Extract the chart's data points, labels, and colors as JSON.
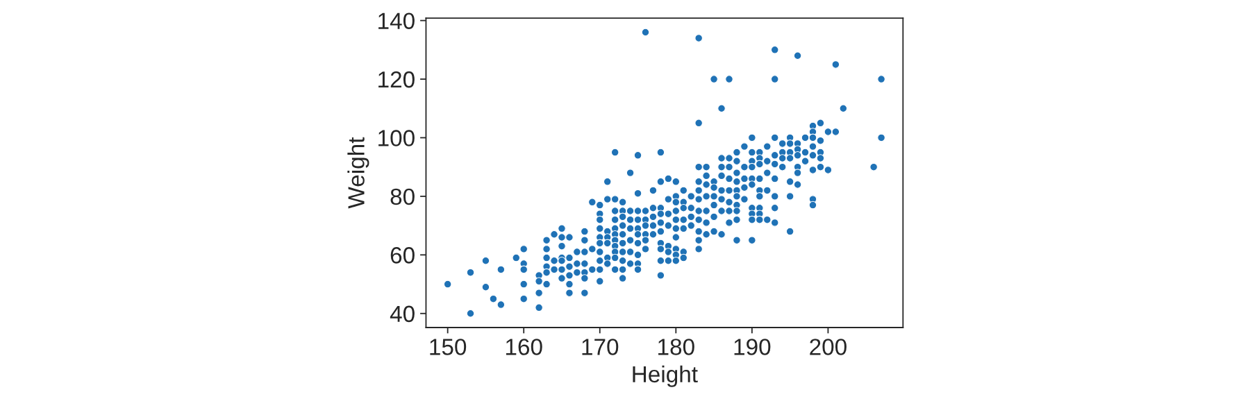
{
  "chart_data": {
    "type": "scatter",
    "xlabel": "Height",
    "ylabel": "Weight",
    "color": "#1f72b6",
    "marker": "circle",
    "xlim": [
      147.15,
      209.85
    ],
    "ylim": [
      35.2,
      140.8
    ],
    "xticks": [
      150,
      160,
      170,
      180,
      190,
      200
    ],
    "yticks": [
      40,
      60,
      80,
      100,
      120,
      140
    ],
    "x": [
      150,
      153,
      153,
      155,
      155,
      156,
      157,
      157,
      159,
      160,
      160,
      160,
      160,
      160,
      162,
      162,
      162,
      162,
      163,
      163,
      163,
      163,
      163,
      163,
      164,
      164,
      164,
      165,
      165,
      165,
      165,
      165,
      165,
      165,
      166,
      166,
      166,
      166,
      166,
      166,
      167,
      167,
      167,
      168,
      168,
      168,
      168,
      168,
      168,
      168,
      169,
      169,
      169,
      170,
      170,
      170,
      170,
      170,
      170,
      170,
      170,
      170,
      170,
      171,
      171,
      171,
      171,
      171,
      171,
      171,
      172,
      172,
      172,
      172,
      172,
      172,
      172,
      172,
      172,
      172,
      172,
      173,
      173,
      173,
      173,
      173,
      173,
      173,
      173,
      173,
      173,
      174,
      174,
      174,
      174,
      174,
      174,
      174,
      175,
      175,
      175,
      175,
      175,
      175,
      175,
      175,
      175,
      175,
      176,
      176,
      176,
      176,
      176,
      176,
      176,
      177,
      177,
      177,
      177,
      177,
      178,
      178,
      178,
      178,
      178,
      178,
      178,
      178,
      178,
      178,
      179,
      179,
      179,
      179,
      179,
      179,
      179,
      180,
      180,
      180,
      180,
      180,
      180,
      180,
      180,
      180,
      180,
      181,
      181,
      181,
      181,
      181,
      181,
      181,
      182,
      182,
      182,
      182,
      183,
      183,
      183,
      183,
      183,
      183,
      183,
      183,
      183,
      183,
      183,
      184,
      184,
      184,
      184,
      184,
      184,
      184,
      185,
      185,
      185,
      185,
      185,
      185,
      185,
      186,
      186,
      186,
      186,
      186,
      186,
      186,
      186,
      187,
      187,
      187,
      187,
      187,
      187,
      187,
      187,
      188,
      188,
      188,
      188,
      188,
      188,
      188,
      188,
      188,
      188,
      189,
      189,
      189,
      189,
      189,
      190,
      190,
      190,
      190,
      190,
      190,
      190,
      190,
      190,
      190,
      191,
      191,
      191,
      191,
      191,
      191,
      191,
      191,
      191,
      192,
      192,
      192,
      192,
      192,
      193,
      193,
      193,
      193,
      193,
      193,
      193,
      193,
      193,
      194,
      194,
      194,
      194,
      195,
      195,
      195,
      195,
      195,
      195,
      195,
      196,
      196,
      196,
      196,
      196,
      196,
      196,
      197,
      197,
      197,
      198,
      198,
      198,
      198,
      198,
      198,
      198,
      198,
      199,
      199,
      199,
      199,
      199,
      200,
      200,
      201,
      201,
      202,
      206,
      207,
      207
    ],
    "values": [
      50,
      54,
      40,
      58,
      49,
      45,
      55,
      43,
      59,
      62,
      57,
      55,
      50,
      45,
      53,
      51,
      47,
      42,
      65,
      62,
      59,
      56,
      54,
      50,
      67,
      58,
      55,
      69,
      66,
      63,
      59,
      58,
      55,
      52,
      66,
      59,
      56,
      53,
      50,
      47,
      61,
      57,
      54,
      68,
      65,
      61,
      57,
      54,
      52,
      47,
      78,
      62,
      55,
      77,
      74,
      72,
      69,
      66,
      64,
      61,
      58,
      55,
      51,
      85,
      79,
      68,
      66,
      64,
      59,
      57,
      95,
      79,
      75,
      72,
      69,
      67,
      65,
      63,
      61,
      59,
      55,
      78,
      75,
      73,
      70,
      67,
      64,
      61,
      58,
      55,
      52,
      88,
      75,
      72,
      69,
      65,
      61,
      57,
      94,
      81,
      75,
      72,
      69,
      67,
      64,
      60,
      57,
      55,
      136,
      75,
      72,
      70,
      67,
      65,
      62,
      82,
      76,
      73,
      70,
      67,
      95,
      85,
      76,
      74,
      71,
      68,
      64,
      62,
      58,
      53,
      86,
      79,
      74,
      70,
      63,
      61,
      58,
      85,
      80,
      78,
      75,
      72,
      69,
      66,
      62,
      60,
      58,
      82,
      78,
      76,
      72,
      69,
      61,
      59,
      80,
      76,
      73,
      70,
      134,
      105,
      90,
      85,
      82,
      79,
      75,
      72,
      68,
      65,
      62,
      90,
      87,
      84,
      80,
      75,
      71,
      67,
      120,
      85,
      83,
      80,
      77,
      73,
      68,
      110,
      93,
      90,
      87,
      82,
      79,
      75,
      67,
      120,
      93,
      90,
      86,
      82,
      78,
      75,
      71,
      95,
      92,
      88,
      85,
      82,
      80,
      77,
      75,
      72,
      65,
      97,
      90,
      86,
      83,
      79,
      100,
      95,
      92,
      90,
      86,
      84,
      76,
      74,
      72,
      65,
      95,
      93,
      91,
      86,
      82,
      80,
      76,
      74,
      72,
      97,
      92,
      88,
      82,
      72,
      130,
      120,
      100,
      94,
      91,
      86,
      80,
      76,
      71,
      98,
      95,
      93,
      90,
      100,
      98,
      95,
      93,
      85,
      80,
      68,
      128,
      98,
      96,
      94,
      90,
      88,
      84,
      100,
      95,
      92,
      104,
      102,
      100,
      97,
      94,
      89,
      79,
      77,
      105,
      99,
      95,
      93,
      90,
      102,
      89,
      125,
      102,
      110,
      90,
      120,
      100
    ]
  }
}
